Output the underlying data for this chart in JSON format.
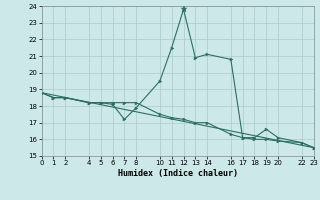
{
  "xlabel": "Humidex (Indice chaleur)",
  "bg_color": "#cce8e8",
  "grid_color": "#aacccc",
  "line_color": "#2e6e60",
  "ylim": [
    15,
    24
  ],
  "xlim": [
    0,
    23
  ],
  "yticks": [
    15,
    16,
    17,
    18,
    19,
    20,
    21,
    22,
    23,
    24
  ],
  "xticks": [
    0,
    1,
    2,
    4,
    5,
    6,
    7,
    8,
    10,
    11,
    12,
    13,
    14,
    16,
    17,
    18,
    19,
    20,
    22,
    23
  ],
  "line1_x": [
    0,
    1,
    2,
    4,
    5,
    6,
    7,
    8,
    10,
    11,
    12,
    13,
    14,
    16,
    17,
    18,
    19,
    20,
    22,
    23
  ],
  "line1_y": [
    18.8,
    18.5,
    18.5,
    18.2,
    18.2,
    18.1,
    17.2,
    17.9,
    19.5,
    21.5,
    23.8,
    20.9,
    21.1,
    20.8,
    16.1,
    16.1,
    16.6,
    16.1,
    15.8,
    15.5
  ],
  "line2_x": [
    0,
    1,
    2,
    4,
    5,
    6,
    7,
    8,
    10,
    11,
    12,
    13,
    14,
    16,
    17,
    18,
    19,
    20,
    22,
    23
  ],
  "line2_y": [
    18.8,
    18.5,
    18.5,
    18.2,
    18.2,
    18.2,
    18.2,
    18.2,
    17.5,
    17.3,
    17.2,
    17.0,
    17.0,
    16.3,
    16.1,
    16.0,
    16.0,
    15.9,
    15.8,
    15.5
  ],
  "line3_x": [
    0,
    23
  ],
  "line3_y": [
    18.8,
    15.5
  ],
  "peak_x": 12,
  "peak_y": 23.8
}
